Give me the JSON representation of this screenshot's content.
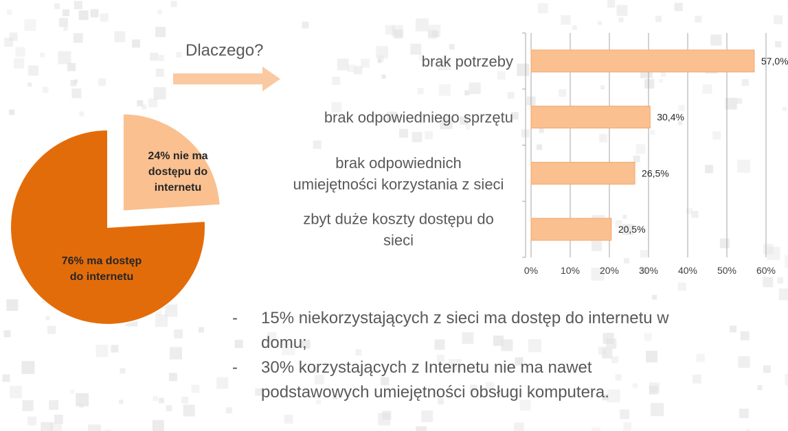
{
  "heading": "Dlaczego?",
  "colors": {
    "pie_large": "#e36c0a",
    "pie_small": "#fac090",
    "bar": "#fac090",
    "bar_stroke": "#f4a56a",
    "grid": "#a6a6a6",
    "pattern": "#e3e3e3"
  },
  "pie": {
    "type": "pie",
    "slices": [
      {
        "label": "24% nie ma dostępu do internetu",
        "value": 24,
        "exploded": true
      },
      {
        "label": "76% ma dostęp do internetu",
        "value": 76,
        "exploded": false
      }
    ]
  },
  "chart_data": {
    "type": "bar",
    "orientation": "horizontal",
    "categories": [
      "brak potrzeby",
      "brak odpowiedniego sprzętu",
      "brak odpowiednich umiejętności korzystania z sieci",
      "zbyt duże koszty dostępu do sieci"
    ],
    "category_lines": [
      [
        "brak potrzeby"
      ],
      [
        "brak odpowiedniego sprzętu"
      ],
      [
        "brak odpowiednich",
        "umiejętności korzystania z sieci"
      ],
      [
        "zbyt duże koszty dostępu do",
        "sieci"
      ]
    ],
    "values": [
      57.0,
      30.4,
      26.5,
      20.5
    ],
    "data_labels": [
      "57,0%",
      "30,4%",
      "26,5%",
      "20,5%"
    ],
    "xlim": [
      0,
      60
    ],
    "xticks": [
      0,
      10,
      20,
      30,
      40,
      50,
      60
    ],
    "xtick_labels": [
      "0%",
      "10%",
      "20%",
      "30%",
      "40%",
      "50%",
      "60%"
    ],
    "grid": true
  },
  "bullets": [
    {
      "dash": "-",
      "text": "15% niekorzystających z sieci ma dostęp do internetu w domu;"
    },
    {
      "dash": "-",
      "text": "30% korzystających z Internetu nie ma nawet podstawowych umiejętności obsługi komputera."
    }
  ]
}
